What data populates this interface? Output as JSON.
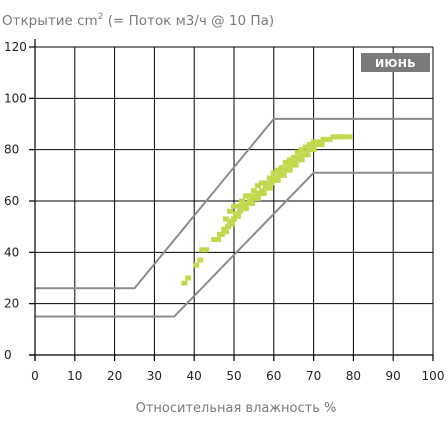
{
  "chart_data": {
    "type": "scatter",
    "title_prefix": "Открытие cm",
    "title_sup": "2",
    "title_suffix": " (= Поток м3/ч @ 10 Па)",
    "xlabel": "Относительная влажность %",
    "ylabel": "",
    "badge": "ИЮНЬ",
    "xlim": [
      0,
      100
    ],
    "ylim": [
      0,
      120
    ],
    "xticks": [
      "0",
      "10",
      "20",
      "30",
      "40",
      "50",
      "60",
      "70",
      "80",
      "90",
      "100"
    ],
    "yticks": [
      "0",
      "20",
      "40",
      "60",
      "80",
      "100",
      "120"
    ],
    "grid": true,
    "envelope_upper": {
      "x": [
        0,
        25,
        60,
        100
      ],
      "y": [
        26,
        26,
        92,
        92
      ]
    },
    "envelope_lower": {
      "x": [
        0,
        35,
        70,
        100
      ],
      "y": [
        15,
        15,
        71,
        71
      ]
    },
    "series": [
      {
        "color": "#c2d94e",
        "points": [
          [
            37.5,
            28
          ],
          [
            38.5,
            30
          ],
          [
            40.5,
            35
          ],
          [
            41.5,
            37
          ],
          [
            42,
            41
          ],
          [
            43,
            41
          ],
          [
            45,
            45
          ],
          [
            46,
            45
          ],
          [
            46.5,
            47
          ],
          [
            47,
            47
          ],
          [
            47.5,
            49
          ],
          [
            48,
            48
          ],
          [
            48.5,
            50
          ],
          [
            49,
            52
          ],
          [
            49.5,
            51
          ],
          [
            50,
            53
          ],
          [
            50.5,
            55
          ],
          [
            51,
            54
          ],
          [
            51.5,
            56
          ],
          [
            52,
            57
          ],
          [
            52.5,
            58
          ],
          [
            53,
            57
          ],
          [
            53.5,
            59
          ],
          [
            54,
            60
          ],
          [
            54.5,
            59
          ],
          [
            55,
            61
          ],
          [
            55.5,
            62
          ],
          [
            56,
            61
          ],
          [
            56.5,
            63
          ],
          [
            57,
            64
          ],
          [
            57.5,
            63
          ],
          [
            58,
            65
          ],
          [
            58.5,
            66
          ],
          [
            59,
            65
          ],
          [
            59.5,
            67
          ],
          [
            60,
            68
          ],
          [
            60.5,
            69
          ],
          [
            61,
            68
          ],
          [
            61.5,
            70
          ],
          [
            62,
            71
          ],
          [
            62.5,
            70
          ],
          [
            63,
            72
          ],
          [
            63.5,
            73
          ],
          [
            64,
            72
          ],
          [
            64.5,
            74
          ],
          [
            65,
            75
          ],
          [
            65.5,
            74
          ],
          [
            66,
            76
          ],
          [
            66.5,
            77
          ],
          [
            67,
            76
          ],
          [
            67.5,
            78
          ],
          [
            68,
            79
          ],
          [
            68.5,
            78
          ],
          [
            69,
            80
          ],
          [
            69.5,
            81
          ],
          [
            70,
            80
          ],
          [
            70.5,
            82
          ],
          [
            71,
            82
          ],
          [
            71.5,
            83
          ],
          [
            72,
            82
          ],
          [
            72.5,
            84
          ],
          [
            73,
            84
          ],
          [
            74,
            84
          ],
          [
            75,
            85
          ],
          [
            76,
            85
          ],
          [
            77,
            85
          ],
          [
            78,
            85
          ],
          [
            79,
            85
          ],
          [
            48,
            53
          ],
          [
            49,
            56
          ],
          [
            50,
            58
          ],
          [
            51,
            58
          ],
          [
            52,
            60
          ],
          [
            53,
            62
          ],
          [
            54,
            62
          ],
          [
            55,
            64
          ],
          [
            56,
            66
          ],
          [
            57,
            67
          ],
          [
            58,
            67
          ],
          [
            59,
            69
          ],
          [
            60,
            71
          ],
          [
            61,
            72
          ],
          [
            62,
            73
          ],
          [
            63,
            75
          ],
          [
            64,
            76
          ],
          [
            65,
            77
          ],
          [
            66,
            79
          ],
          [
            67,
            80
          ],
          [
            68,
            81
          ],
          [
            69,
            82
          ],
          [
            70,
            83
          ]
        ]
      }
    ],
    "colors": {
      "grid": "#000000",
      "envelope": "#8c8c8c",
      "badge_bg": "#7a7a7a"
    }
  }
}
